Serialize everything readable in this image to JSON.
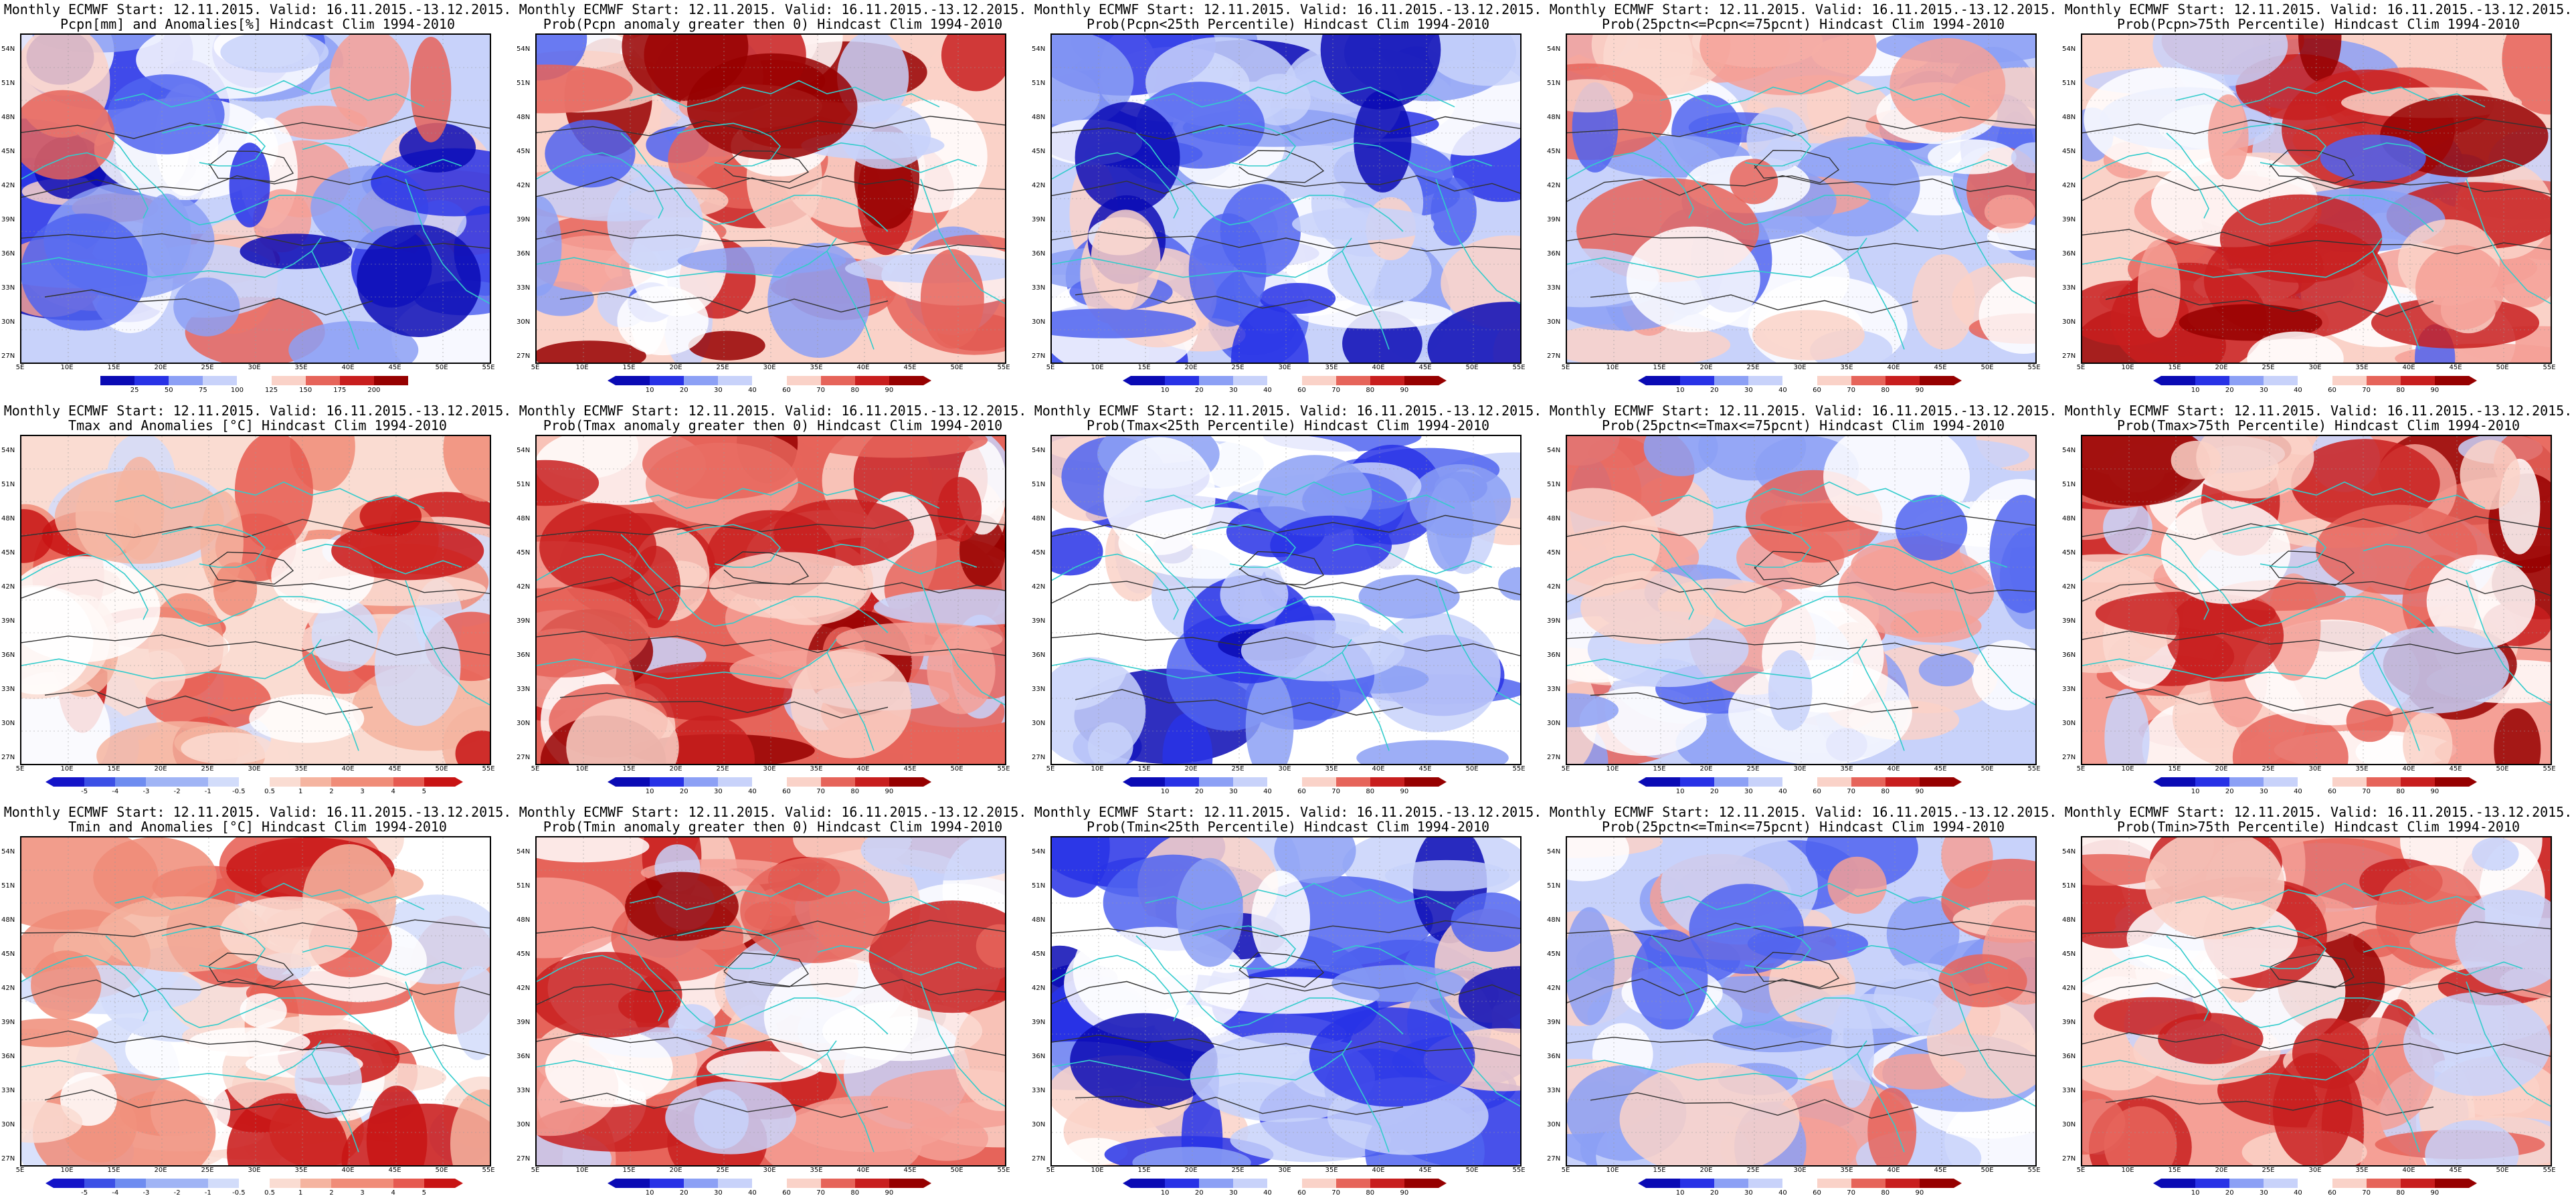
{
  "lat_labels": [
    "54N",
    "51N",
    "48N",
    "45N",
    "42N",
    "39N",
    "36N",
    "33N",
    "30N",
    "27N"
  ],
  "lon_labels": [
    "5E",
    "10E",
    "15E",
    "20E",
    "25E",
    "30E",
    "35E",
    "40E",
    "45E",
    "50E",
    "55E"
  ],
  "colors": {
    "coastline": "#33cccc",
    "contour": "#333333",
    "anomaly_scale": [
      "#1414c8",
      "#3c50e6",
      "#6e8cf0",
      "#a0b4f5",
      "#d2dcfa",
      "#ffffff",
      "#fadcd2",
      "#f5b4a0",
      "#f08c78",
      "#e65a50",
      "#c81414"
    ],
    "prob_scale": [
      "#0a0ab4",
      "#2832e6",
      "#5064f0",
      "#8ca0f5",
      "#c8d2fa",
      "#ffffff",
      "#fad2c8",
      "#f5a096",
      "#e6645a",
      "#c81e1e",
      "#960000"
    ]
  },
  "rows": [
    {
      "variable": "precipitation",
      "panels": [
        {
          "title1": "Monthly ECMWF Start: 12.11.2015. Valid: 16.11.2015.-13.12.2015.",
          "title2": "Pcpn[mm] and Anomalies[%] Hindcast Clim 1994-2010",
          "colorbar": [
            "25",
            "50",
            "75",
            "100",
            "125",
            "150",
            "175",
            "200"
          ],
          "tip_left": false,
          "tip_right": false,
          "bias": "dry",
          "fill_level": 0.55
        },
        {
          "title1": "Monthly ECMWF Start: 12.11.2015. Valid: 16.11.2015.-13.12.2015.",
          "title2": "Prob(Pcpn anomaly greater then 0) Hindcast Clim 1994-2010",
          "colorbar": [
            "10",
            "20",
            "30",
            "40",
            "60",
            "70",
            "80",
            "90"
          ],
          "tip_left": true,
          "tip_right": true,
          "bias": "wet",
          "fill_level": 0.5
        },
        {
          "title1": "Monthly ECMWF Start: 12.11.2015. Valid: 16.11.2015.-13.12.2015.",
          "title2": "Prob(Pcpn<25th Percentile) Hindcast Clim 1994-2010",
          "colorbar": [
            "10",
            "20",
            "30",
            "40",
            "60",
            "70",
            "80",
            "90"
          ],
          "tip_left": true,
          "tip_right": true,
          "bias": "blue",
          "fill_level": 0.7
        },
        {
          "title1": "Monthly ECMWF Start: 12.11.2015. Valid: 16.11.2015.-13.12.2015.",
          "title2": "Prob(25pctn<=Pcpn<=75pcnt) Hindcast Clim 1994-2010",
          "colorbar": [
            "10",
            "20",
            "30",
            "40",
            "60",
            "70",
            "80",
            "90"
          ],
          "tip_left": true,
          "tip_right": true,
          "bias": "mixed",
          "fill_level": 0.3
        },
        {
          "title1": "Monthly ECMWF Start: 12.11.2015. Valid: 16.11.2015.-13.12.2015.",
          "title2": "Prob(Pcpn>75th Percentile) Hindcast Clim 1994-2010",
          "colorbar": [
            "10",
            "20",
            "30",
            "40",
            "60",
            "70",
            "80",
            "90"
          ],
          "tip_left": true,
          "tip_right": true,
          "bias": "wet",
          "fill_level": 0.55
        }
      ]
    },
    {
      "variable": "tmax",
      "panels": [
        {
          "title1": "Monthly ECMWF Start: 12.11.2015. Valid: 16.11.2015.-13.12.2015.",
          "title2": "Tmax and Anomalies [°C] Hindcast Clim 1994-2010",
          "colorbar": [
            "-5",
            "-4",
            "-3",
            "-2",
            "-1",
            "-0.5",
            "0.5",
            "1",
            "2",
            "3",
            "4",
            "5"
          ],
          "tip_left": true,
          "tip_right": true,
          "bias": "warm",
          "fill_level": 0.35
        },
        {
          "title1": "Monthly ECMWF Start: 12.11.2015. Valid: 16.11.2015.-13.12.2015.",
          "title2": "Prob(Tmax anomaly greater then 0) Hindcast Clim 1994-2010",
          "colorbar": [
            "10",
            "20",
            "30",
            "40",
            "60",
            "70",
            "80",
            "90"
          ],
          "tip_left": true,
          "tip_right": true,
          "bias": "warm",
          "fill_level": 0.7
        },
        {
          "title1": "Monthly ECMWF Start: 12.11.2015. Valid: 16.11.2015.-13.12.2015.",
          "title2": "Prob(Tmax<25th Percentile) Hindcast Clim 1994-2010",
          "colorbar": [
            "10",
            "20",
            "30",
            "40",
            "60",
            "70",
            "80",
            "90"
          ],
          "tip_left": true,
          "tip_right": true,
          "bias": "blue",
          "fill_level": 0.8
        },
        {
          "title1": "Monthly ECMWF Start: 12.11.2015. Valid: 16.11.2015.-13.12.2015.",
          "title2": "Prob(25pctn<=Tmax<=75pcnt) Hindcast Clim 1994-2010",
          "colorbar": [
            "10",
            "20",
            "30",
            "40",
            "60",
            "70",
            "80",
            "90"
          ],
          "tip_left": true,
          "tip_right": true,
          "bias": "mixed",
          "fill_level": 0.3
        },
        {
          "title1": "Monthly ECMWF Start: 12.11.2015. Valid: 16.11.2015.-13.12.2015.",
          "title2": "Prob(Tmax>75th Percentile) Hindcast Clim 1994-2010",
          "colorbar": [
            "10",
            "20",
            "30",
            "40",
            "60",
            "70",
            "80",
            "90"
          ],
          "tip_left": true,
          "tip_right": true,
          "bias": "warm",
          "fill_level": 0.55
        }
      ]
    },
    {
      "variable": "tmin",
      "panels": [
        {
          "title1": "Monthly ECMWF Start: 12.11.2015. Valid: 16.11.2015.-13.12.2015.",
          "title2": "Tmin and Anomalies [°C] Hindcast Clim 1994-2010",
          "colorbar": [
            "-5",
            "-4",
            "-3",
            "-2",
            "-1",
            "-0.5",
            "0.5",
            "1",
            "2",
            "3",
            "4",
            "5"
          ],
          "tip_left": true,
          "tip_right": true,
          "bias": "warm",
          "fill_level": 0.3
        },
        {
          "title1": "Monthly ECMWF Start: 12.11.2015. Valid: 16.11.2015.-13.12.2015.",
          "title2": "Prob(Tmin anomaly greater then 0) Hindcast Clim 1994-2010",
          "colorbar": [
            "10",
            "20",
            "30",
            "40",
            "60",
            "70",
            "80",
            "90"
          ],
          "tip_left": true,
          "tip_right": true,
          "bias": "warm",
          "fill_level": 0.7
        },
        {
          "title1": "Monthly ECMWF Start: 12.11.2015. Valid: 16.11.2015.-13.12.2015.",
          "title2": "Prob(Tmin<25th Percentile) Hindcast Clim 1994-2010",
          "colorbar": [
            "10",
            "20",
            "30",
            "40",
            "60",
            "70",
            "80",
            "90"
          ],
          "tip_left": true,
          "tip_right": true,
          "bias": "blue",
          "fill_level": 0.85
        },
        {
          "title1": "Monthly ECMWF Start: 12.11.2015. Valid: 16.11.2015.-13.12.2015.",
          "title2": "Prob(25pctn<=Tmin<=75pcnt) Hindcast Clim 1994-2010",
          "colorbar": [
            "10",
            "20",
            "30",
            "40",
            "60",
            "70",
            "80",
            "90"
          ],
          "tip_left": true,
          "tip_right": true,
          "bias": "mixed",
          "fill_level": 0.35
        },
        {
          "title1": "Monthly ECMWF Start: 12.11.2015. Valid: 16.11.2015.-13.12.2015.",
          "title2": "Prob(Tmin>75th Percentile) Hindcast Clim 1994-2010",
          "colorbar": [
            "10",
            "20",
            "30",
            "40",
            "60",
            "70",
            "80",
            "90"
          ],
          "tip_left": true,
          "tip_right": true,
          "bias": "warm",
          "fill_level": 0.6
        }
      ]
    }
  ]
}
